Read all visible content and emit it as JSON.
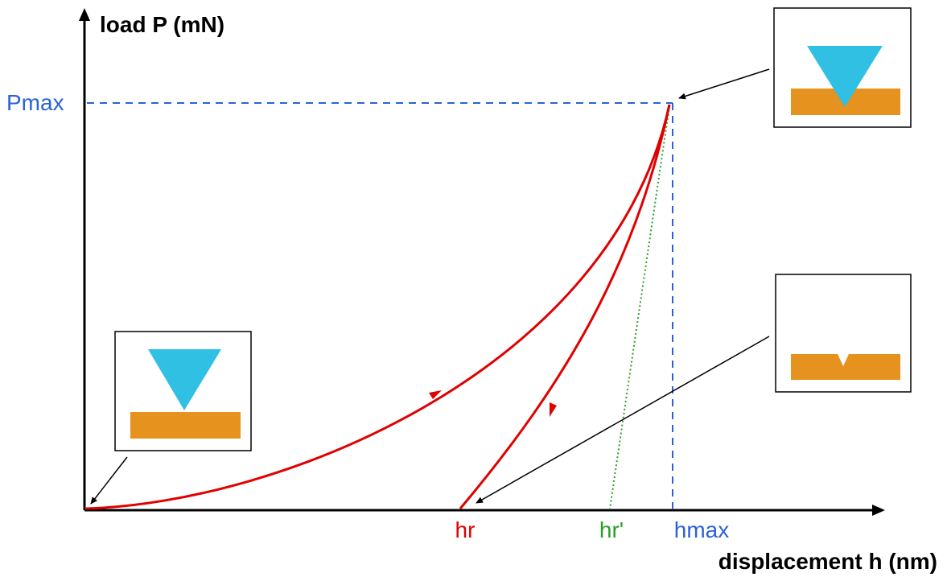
{
  "axes": {
    "y_label": "load P (mN)",
    "x_label": "displacement h (nm)"
  },
  "markers": {
    "pmax": "Pmax",
    "hr": "hr",
    "hr_prime": "hr'",
    "hmax": "hmax"
  },
  "colors": {
    "curve": "#e00000",
    "reference": "#2a62d8",
    "tangent": "#2aa02a",
    "indenter": "#2fc0e4",
    "sample": "#e5921f",
    "axis": "#000000"
  },
  "insets": [
    {
      "name": "inset-before-contact",
      "state": "indenter above sample"
    },
    {
      "name": "inset-max-load",
      "state": "indenter penetrating sample"
    },
    {
      "name": "inset-after-unload",
      "state": "residual indentation"
    }
  ]
}
